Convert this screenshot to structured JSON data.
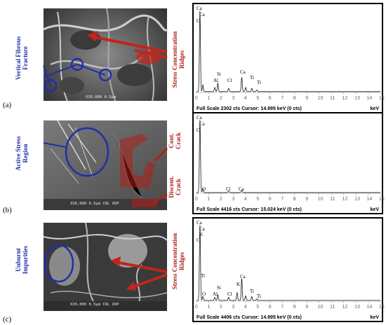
{
  "rows": [
    {
      "label": "(a)",
      "left_label": [
        "Vertical Fibrous",
        "Fracture"
      ],
      "right_label": [
        "Stress Concentration",
        "Ridges"
      ],
      "scalebar": "X30,000  0.5µm",
      "footer": "Full Scale 2302 cts  Cursor: 14.995 keV (0 cts)",
      "unit": "keV",
      "peaks": [
        "Ca",
        "Ca",
        "C",
        "Si",
        "Al",
        "Cl",
        "Ca",
        "Ti",
        "Ti"
      ]
    },
    {
      "label": "(b)",
      "left_label": [
        "Active Stress",
        "Region"
      ],
      "right_label_1": [
        "Cont.",
        "Crack"
      ],
      "right_label_2": [
        "Discont.",
        "Crack"
      ],
      "scalebar": "X30,000  0.5µm   CRL UOP",
      "footer": "Full Scale 4416 cts  Cursor: 15.024 keV (0 cts)",
      "unit": "keV",
      "peaks": [
        "Ca",
        "Ca",
        "C",
        "O",
        "Cl",
        "Ca"
      ]
    },
    {
      "label": "(c)",
      "left_label": [
        "Unburnt",
        "Impurities"
      ],
      "right_label": [
        "Stress Concentration",
        "Ridges"
      ],
      "scalebar": "X30,000  0.5µm   CRL UOP",
      "footer": "Full Scale 4406 cts  Cursor: 14.995 keV (0 cts)",
      "unit": "keV",
      "peaks": [
        "Ca",
        "Ca",
        "K",
        "C",
        "Ti",
        "O",
        "Al",
        "Si",
        "Cl",
        "K",
        "Ca",
        "Ti",
        "Ti"
      ]
    }
  ],
  "ticks": [
    "0",
    "1",
    "2",
    "3",
    "4",
    "5",
    "6",
    "7",
    "8",
    "9",
    "10",
    "11",
    "12",
    "13",
    "14",
    "15"
  ],
  "colors": {
    "annotation_blue": "#1f2fa8",
    "annotation_red": "#b02018",
    "spectrum": "#1a1a1a"
  }
}
